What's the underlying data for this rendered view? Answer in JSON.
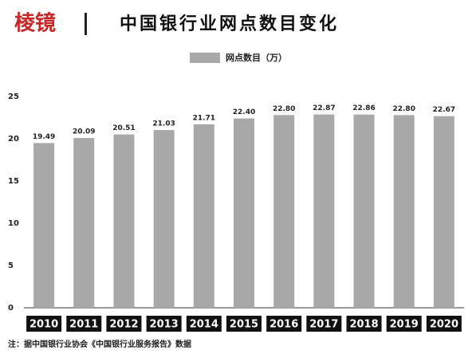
{
  "logo": "棱镜",
  "chart_data": {
    "type": "bar",
    "title": "中国银行业网点数目变化",
    "legend": "网点数目（万）",
    "categories": [
      "2010",
      "2011",
      "2012",
      "2013",
      "2014",
      "2015",
      "2016",
      "2017",
      "2018",
      "2019",
      "2020"
    ],
    "values": [
      19.49,
      20.09,
      20.51,
      21.03,
      21.71,
      22.4,
      22.8,
      22.87,
      22.86,
      22.8,
      22.67
    ],
    "value_labels": [
      "19.49",
      "20.09",
      "20.51",
      "21.03",
      "21.71",
      "22.40",
      "22.80",
      "22.87",
      "22.86",
      "22.80",
      "22.67"
    ],
    "color": "#a8a8a8",
    "ylim": [
      0,
      25
    ],
    "yticks": [
      0,
      5,
      10,
      15,
      20,
      25
    ],
    "grid": false
  },
  "footnote": "注：据中国银行业协会《中国银行业服务报告》数据"
}
